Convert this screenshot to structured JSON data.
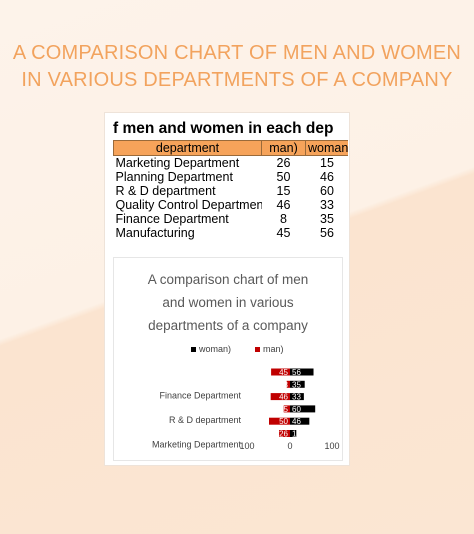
{
  "page": {
    "title_line1": "A COMPARISON CHART OF MEN AND WOMEN",
    "title_line2": "IN VARIOUS DEPARTMENTS OF A COMPANY"
  },
  "sheet": {
    "title": "f men and women in each dep",
    "headers": [
      "department",
      "man)",
      "woman)"
    ],
    "rows": [
      [
        "Marketing Department",
        "26",
        "15"
      ],
      [
        "Planning Department",
        "50",
        "46"
      ],
      [
        "R & D department",
        "15",
        "60"
      ],
      [
        "Quality Control Departmen",
        "46",
        "33"
      ],
      [
        "Finance Department",
        "8",
        "35"
      ],
      [
        "Manufacturing",
        "45",
        "56"
      ]
    ]
  },
  "chart_data": {
    "type": "bar",
    "orientation": "horizontal",
    "title_lines": [
      "A comparison chart of men",
      "and women in various",
      "departments of a company"
    ],
    "legend_position": "top",
    "legend": [
      "woman)",
      "man)"
    ],
    "categories": [
      "Marketing Department",
      "Planning Department",
      "R & D department",
      "Quality Control Departmen",
      "Finance Department",
      "Manufacturing"
    ],
    "visible_category_labels": [
      "Finance Department",
      "R & D department",
      "Marketing Department"
    ],
    "series": [
      {
        "name": "man)",
        "color": "#c00000",
        "direction": "left",
        "values": [
          26,
          50,
          15,
          46,
          8,
          45
        ]
      },
      {
        "name": "woman)",
        "color": "#000000",
        "direction": "right",
        "values": [
          15,
          46,
          60,
          33,
          35,
          56
        ]
      }
    ],
    "x_tick_labels": [
      "100",
      "0",
      "100"
    ],
    "xlim": [
      -100,
      100
    ],
    "grid": false
  },
  "colors": {
    "title": "#f2a35e",
    "header_fill": "#f6a35a",
    "man": "#c00000",
    "woman": "#000000"
  }
}
